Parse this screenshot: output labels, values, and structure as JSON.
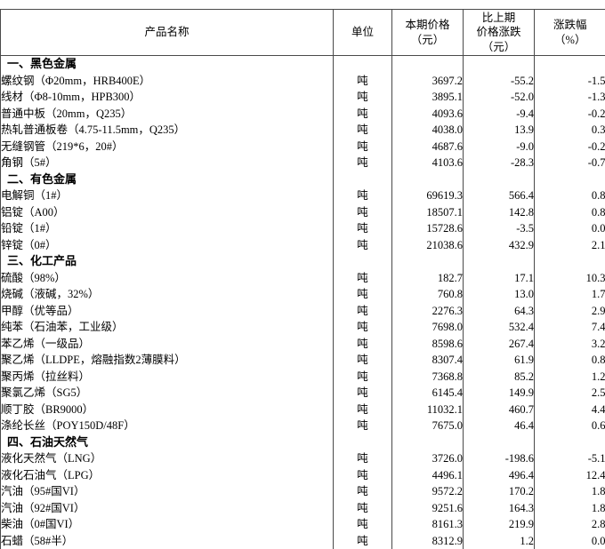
{
  "table": {
    "headers": {
      "product": "产品名称",
      "unit": "单位",
      "price": "本期价格\n（元）",
      "change": "比上期\n价格涨跌\n（元）",
      "pct": "涨跌幅\n（%）"
    },
    "rows": [
      {
        "type": "section",
        "name": "一、黑色金属",
        "unit": "",
        "price": "",
        "change": "",
        "pct": ""
      },
      {
        "type": "item",
        "name": "螺纹钢（Φ20mm，HRB400E）",
        "unit": "吨",
        "price": "3697.2",
        "change": "-55.2",
        "pct": "-1.5"
      },
      {
        "type": "item",
        "name": "线材（Φ8-10mm，HPB300）",
        "unit": "吨",
        "price": "3895.1",
        "change": "-52.0",
        "pct": "-1.3"
      },
      {
        "type": "item",
        "name": "普通中板（20mm，Q235）",
        "unit": "吨",
        "price": "4093.6",
        "change": "-9.4",
        "pct": "-0.2"
      },
      {
        "type": "item",
        "name": "热轧普通板卷（4.75-11.5mm，Q235）",
        "unit": "吨",
        "price": "4038.0",
        "change": "13.9",
        "pct": "0.3"
      },
      {
        "type": "item",
        "name": "无缝钢管（219*6，20#）",
        "unit": "吨",
        "price": "4687.6",
        "change": "-9.0",
        "pct": "-0.2"
      },
      {
        "type": "item",
        "name": "角钢（5#）",
        "unit": "吨",
        "price": "4103.6",
        "change": "-28.3",
        "pct": "-0.7"
      },
      {
        "type": "section",
        "name": "二、有色金属",
        "unit": "",
        "price": "",
        "change": "",
        "pct": ""
      },
      {
        "type": "item",
        "name": "电解铜（1#）",
        "unit": "吨",
        "price": "69619.3",
        "change": "566.4",
        "pct": "0.8"
      },
      {
        "type": "item",
        "name": "铝锭（A00）",
        "unit": "吨",
        "price": "18507.1",
        "change": "142.8",
        "pct": "0.8"
      },
      {
        "type": "item",
        "name": "铅锭（1#）",
        "unit": "吨",
        "price": "15728.6",
        "change": "-3.5",
        "pct": "0.0"
      },
      {
        "type": "item",
        "name": "锌锭（0#）",
        "unit": "吨",
        "price": "21038.6",
        "change": "432.9",
        "pct": "2.1"
      },
      {
        "type": "section",
        "name": "三、化工产品",
        "unit": "",
        "price": "",
        "change": "",
        "pct": ""
      },
      {
        "type": "item",
        "name": "硫酸（98%）",
        "unit": "吨",
        "price": "182.7",
        "change": "17.1",
        "pct": "10.3"
      },
      {
        "type": "item",
        "name": "烧碱（液碱，32%）",
        "unit": "吨",
        "price": "760.8",
        "change": "13.0",
        "pct": "1.7"
      },
      {
        "type": "item",
        "name": "甲醇（优等品）",
        "unit": "吨",
        "price": "2276.3",
        "change": "64.3",
        "pct": "2.9"
      },
      {
        "type": "item",
        "name": "纯苯（石油苯，工业级）",
        "unit": "吨",
        "price": "7698.0",
        "change": "532.4",
        "pct": "7.4"
      },
      {
        "type": "item",
        "name": "苯乙烯（一级品）",
        "unit": "吨",
        "price": "8598.6",
        "change": "267.4",
        "pct": "3.2"
      },
      {
        "type": "item",
        "name": "聚乙烯（LLDPE，熔融指数2薄膜料）",
        "unit": "吨",
        "price": "8307.4",
        "change": "61.9",
        "pct": "0.8"
      },
      {
        "type": "item",
        "name": "聚丙烯（拉丝料）",
        "unit": "吨",
        "price": "7368.8",
        "change": "85.2",
        "pct": "1.2"
      },
      {
        "type": "item",
        "name": "聚氯乙烯（SG5）",
        "unit": "吨",
        "price": "6145.4",
        "change": "149.9",
        "pct": "2.5"
      },
      {
        "type": "item",
        "name": "顺丁胶（BR9000）",
        "unit": "吨",
        "price": "11032.1",
        "change": "460.7",
        "pct": "4.4"
      },
      {
        "type": "item",
        "name": "涤纶长丝（POY150D/48F）",
        "unit": "吨",
        "price": "7675.0",
        "change": "46.4",
        "pct": "0.6"
      },
      {
        "type": "section",
        "name": "四、石油天然气",
        "unit": "",
        "price": "",
        "change": "",
        "pct": ""
      },
      {
        "type": "item",
        "name": "液化天然气（LNG）",
        "unit": "吨",
        "price": "3726.0",
        "change": "-198.6",
        "pct": "-5.1"
      },
      {
        "type": "item",
        "name": "液化石油气（LPG）",
        "unit": "吨",
        "price": "4496.1",
        "change": "496.4",
        "pct": "12.4"
      },
      {
        "type": "item",
        "name": "汽油（95#国VI）",
        "unit": "吨",
        "price": "9572.2",
        "change": "170.2",
        "pct": "1.8"
      },
      {
        "type": "item",
        "name": "汽油（92#国VI）",
        "unit": "吨",
        "price": "9251.6",
        "change": "164.3",
        "pct": "1.8"
      },
      {
        "type": "item",
        "name": "柴油（0#国VI）",
        "unit": "吨",
        "price": "8161.3",
        "change": "219.9",
        "pct": "2.8"
      },
      {
        "type": "item",
        "name": "石蜡（58#半）",
        "unit": "吨",
        "price": "8312.9",
        "change": "1.2",
        "pct": "0.0"
      }
    ]
  }
}
